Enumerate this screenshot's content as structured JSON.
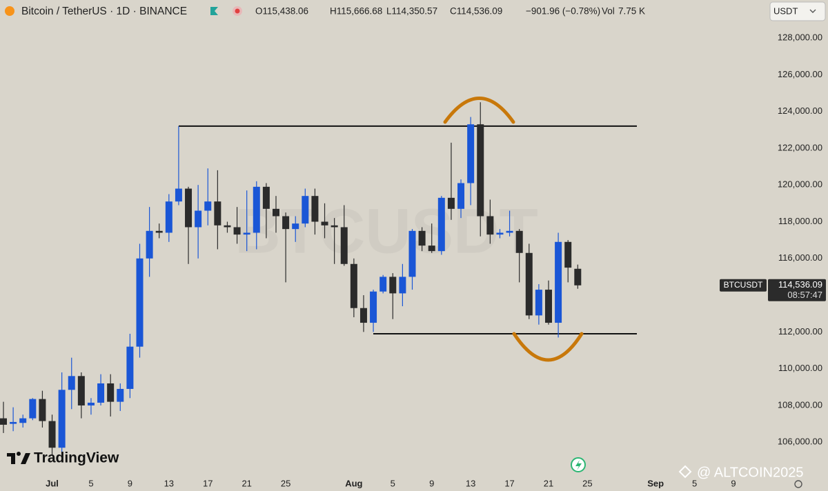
{
  "header": {
    "symbol": "Bitcoin / TetherUS · 1D · BINANCE",
    "open": "O115,438.06",
    "high": "H115,666.68",
    "low": "L114,350.57",
    "close": "C114,536.09",
    "change": "−901.96 (−0.78%)",
    "volume_label": "Vol",
    "volume": "7.75 K",
    "currency": "USDT"
  },
  "chart_data": {
    "type": "candlestick",
    "categories": [
      null,
      null,
      null,
      null,
      null,
      "Jul",
      null,
      null,
      null,
      "5",
      null,
      null,
      null,
      "9",
      null,
      null,
      null,
      "13",
      null,
      null,
      null,
      "17",
      null,
      null,
      null,
      "21",
      null,
      null,
      null,
      "25",
      null,
      null,
      null,
      null,
      null,
      null,
      "Aug",
      null,
      null,
      null,
      "5",
      null,
      null,
      null,
      "9",
      null,
      null,
      null,
      "13",
      null,
      null,
      null,
      "17",
      null,
      null,
      null,
      "21",
      null,
      null,
      null,
      "25",
      null,
      null,
      null,
      null,
      null,
      null,
      "Sep",
      null,
      null,
      null,
      "5",
      null,
      null,
      null,
      "9"
    ],
    "open": [
      107300,
      107000,
      107050,
      107300,
      108350,
      107150,
      105700,
      108850,
      109600,
      108000,
      108150,
      109200,
      108200,
      108900,
      111200,
      116000,
      117500,
      117400,
      119100,
      119800,
      117700,
      118600,
      119100,
      117800,
      117700,
      117300,
      117400,
      119900,
      118700,
      118300,
      117600,
      117900,
      119400,
      118000,
      117800,
      117700,
      115700,
      113300,
      112500,
      114200,
      115000,
      114100,
      115000,
      117500,
      116700,
      116400,
      119300,
      118700,
      120100,
      123300,
      118300,
      117300,
      117400,
      117500,
      116300,
      112900,
      114300,
      112500,
      116900,
      115438.06,
      null,
      null,
      null,
      null,
      null,
      null,
      null,
      null,
      null,
      null,
      null,
      null,
      null,
      null,
      null,
      null
    ],
    "high": [
      108200,
      107900,
      107500,
      108400,
      108800,
      107500,
      109800,
      110600,
      109800,
      108400,
      109700,
      109700,
      109200,
      111900,
      116800,
      118800,
      117900,
      119500,
      123200,
      119900,
      120000,
      120900,
      120800,
      118000,
      118800,
      119700,
      120200,
      120100,
      119400,
      118500,
      118300,
      119800,
      119800,
      119000,
      118200,
      118900,
      116000,
      114000,
      114300,
      115100,
      115200,
      115700,
      117600,
      117700,
      117900,
      119400,
      122300,
      120300,
      123700,
      124500,
      119200,
      117600,
      118600,
      117600,
      116800,
      114600,
      114800,
      117400,
      117000,
      115666.68,
      null,
      null,
      null,
      null,
      null,
      null,
      null,
      null,
      null,
      null,
      null,
      null,
      null,
      null,
      null,
      null
    ],
    "low": [
      106500,
      106600,
      106800,
      107200,
      106800,
      105300,
      105200,
      107800,
      107300,
      107500,
      108000,
      107400,
      107700,
      108400,
      110600,
      115000,
      117100,
      116900,
      118900,
      115700,
      116000,
      117800,
      116500,
      117400,
      116800,
      116400,
      116500,
      117100,
      117400,
      114700,
      116900,
      117700,
      117300,
      117100,
      115700,
      115600,
      112800,
      112000,
      112000,
      114100,
      112700,
      113400,
      114300,
      116400,
      116300,
      116200,
      118100,
      118200,
      118900,
      117200,
      116800,
      117100,
      117200,
      114700,
      112700,
      112400,
      112400,
      111700,
      114700,
      114350.57,
      null,
      null,
      null,
      null,
      null,
      null,
      null,
      null,
      null,
      null,
      null,
      null,
      null,
      null,
      null,
      null
    ],
    "close": [
      106950,
      107100,
      107300,
      108350,
      107150,
      105700,
      108850,
      109600,
      108000,
      108150,
      109200,
      108200,
      108900,
      111200,
      116000,
      117500,
      117400,
      119100,
      119800,
      117700,
      118600,
      119100,
      117800,
      117700,
      117300,
      117400,
      119900,
      118700,
      118300,
      117600,
      117900,
      119400,
      118000,
      117800,
      117700,
      115700,
      113300,
      112500,
      114200,
      115000,
      114100,
      115000,
      117500,
      116700,
      116400,
      119300,
      118700,
      120100,
      123300,
      118300,
      117300,
      117400,
      117500,
      116300,
      112900,
      114300,
      112500,
      116900,
      115500,
      114536.09,
      null,
      null,
      null,
      null,
      null,
      null,
      null,
      null,
      null,
      null,
      null,
      null,
      null,
      null,
      null,
      null
    ],
    "up_color": "#1a56d6",
    "down_color": "#2b2b2b",
    "ylim": [
      104170,
      130065
    ],
    "yticks": [
      {
        "value": 106000,
        "label": "106,000.00"
      },
      {
        "value": 108000,
        "label": "108,000.00"
      },
      {
        "value": 110000,
        "label": "110,000.00"
      },
      {
        "value": 112000,
        "label": "112,000.00"
      },
      {
        "value": 114000,
        "label": "114,000.00"
      },
      {
        "value": 116000,
        "label": "116,000.00"
      },
      {
        "value": 118000,
        "label": "118,000.00"
      },
      {
        "value": 120000,
        "label": "120,000.00"
      },
      {
        "value": 122000,
        "label": "122,000.00"
      },
      {
        "value": 124000,
        "label": "124,000.00"
      },
      {
        "value": 126000,
        "label": "126,000.00"
      },
      {
        "value": 128000,
        "label": "128,000.00"
      }
    ],
    "levels": [
      123200,
      111900
    ],
    "price_tag": {
      "symbol": "BTCUSDT",
      "price": {
        "value": 114536.09,
        "label": "114,536.09"
      },
      "countdown": "08:57:47"
    },
    "watermark": "BTCUSDT"
  },
  "branding": {
    "logo": "TradingView",
    "credit": "@ ALTCOIN2025"
  }
}
